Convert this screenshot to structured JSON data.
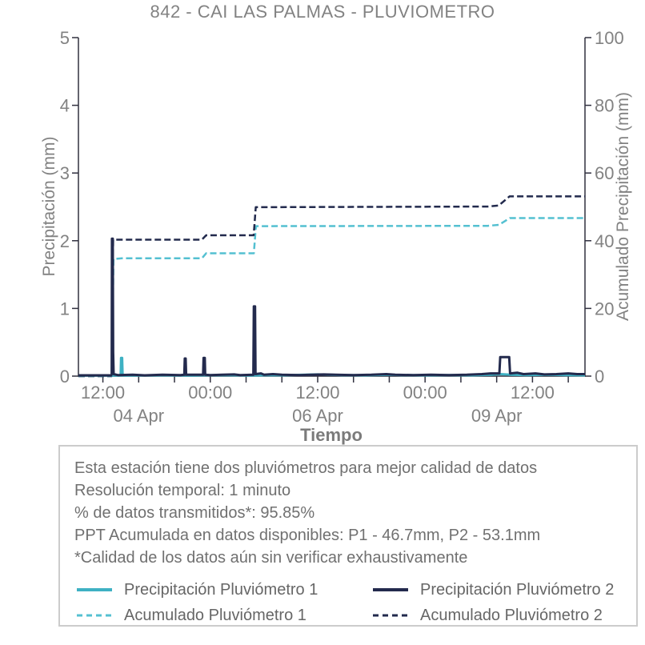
{
  "chart_data": {
    "type": "line",
    "title": "842 - CAI LAS PALMAS - PLUVIOMETRO",
    "xlabel": "Tiempo",
    "ylabel": "Precipitación (mm)",
    "y2label": "Acumulado Precipitación (mm)",
    "grid": false,
    "x_axis": {
      "unit": "hours from 03 Apr 12:00",
      "domain_hours": [
        -8.2,
        161.6
      ],
      "ticks": [
        {
          "h": 0,
          "label": "12:00"
        },
        {
          "h": 12,
          "label": ""
        },
        {
          "h": 24,
          "label": ""
        },
        {
          "h": 36,
          "label": "00:00"
        },
        {
          "h": 48,
          "label": ""
        },
        {
          "h": 60,
          "label": ""
        },
        {
          "h": 72,
          "label": "12:00"
        },
        {
          "h": 84,
          "label": ""
        },
        {
          "h": 96,
          "label": ""
        },
        {
          "h": 108,
          "label": "00:00"
        },
        {
          "h": 120,
          "label": ""
        },
        {
          "h": 132,
          "label": ""
        },
        {
          "h": 144,
          "label": "12:00"
        },
        {
          "h": 156,
          "label": ""
        }
      ],
      "date_ticks": [
        {
          "h": 12,
          "label": "04 Apr"
        },
        {
          "h": 72,
          "label": "06 Apr"
        },
        {
          "h": 132,
          "label": "09 Apr"
        }
      ]
    },
    "y_left": {
      "min": 0,
      "max": 5,
      "ticks": [
        0,
        1,
        2,
        3,
        4,
        5
      ]
    },
    "y_right": {
      "min": 0,
      "max": 100,
      "ticks": [
        0,
        20,
        40,
        60,
        80,
        100
      ]
    },
    "series": [
      {
        "name": "Acumulado Pluviómetro 1",
        "axis": "right",
        "style": "dashed",
        "color": "#54c0d1",
        "width": 2.5,
        "points": [
          [
            -8.2,
            0
          ],
          [
            3.05,
            0
          ],
          [
            3.55,
            34.6
          ],
          [
            6.4,
            34.8
          ],
          [
            33.2,
            34.8
          ],
          [
            34.6,
            36.3
          ],
          [
            50.6,
            36.3
          ],
          [
            51.3,
            44.3
          ],
          [
            129,
            44.4
          ],
          [
            132.8,
            44.7
          ],
          [
            136.4,
            46.7
          ],
          [
            161.6,
            46.7
          ]
        ]
      },
      {
        "name": "Acumulado Pluviómetro 2",
        "axis": "right",
        "style": "dashed",
        "color": "#222a4d",
        "width": 2.5,
        "points": [
          [
            -8.2,
            0
          ],
          [
            2.95,
            0
          ],
          [
            3.45,
            40.3
          ],
          [
            33.2,
            40.3
          ],
          [
            34.6,
            41.6
          ],
          [
            50.55,
            41.6
          ],
          [
            51.25,
            49.9
          ],
          [
            129,
            50.1
          ],
          [
            132.7,
            50.4
          ],
          [
            136.3,
            53.1
          ],
          [
            161.6,
            53.1
          ]
        ]
      },
      {
        "name": "Precipitación Pluviómetro 1",
        "axis": "left",
        "style": "solid",
        "color": "#3eb1c3",
        "width": 3,
        "points": [
          [
            -8.2,
            0.01
          ],
          [
            5.95,
            0.01
          ],
          [
            6.1,
            0.27
          ],
          [
            6.45,
            0.27
          ],
          [
            6.6,
            0.01
          ],
          [
            20,
            0.012
          ],
          [
            30,
            0.01
          ],
          [
            40,
            0.015
          ],
          [
            50,
            0.01
          ],
          [
            56,
            0.015
          ],
          [
            60,
            0.012
          ],
          [
            68,
            0.02
          ],
          [
            72,
            0.025
          ],
          [
            76,
            0.02
          ],
          [
            80,
            0.015
          ],
          [
            88,
            0.012
          ],
          [
            96,
            0.02
          ],
          [
            100,
            0.015
          ],
          [
            108,
            0.012
          ],
          [
            116,
            0.015
          ],
          [
            124,
            0.012
          ],
          [
            130,
            0.02
          ],
          [
            133,
            0.03
          ],
          [
            135,
            0.025
          ],
          [
            137,
            0.02
          ],
          [
            142,
            0.015
          ],
          [
            150,
            0.02
          ],
          [
            155,
            0.015
          ],
          [
            161.6,
            0.012
          ]
        ]
      },
      {
        "name": "Precipitación Pluviómetro 2",
        "axis": "left",
        "style": "solid",
        "color": "#232a4d",
        "width": 3,
        "points": [
          [
            -8.2,
            0.012
          ],
          [
            2.8,
            0.012
          ],
          [
            2.95,
            0.03
          ],
          [
            3.05,
            2.03
          ],
          [
            3.3,
            2.03
          ],
          [
            3.45,
            0.35
          ],
          [
            3.6,
            0.03
          ],
          [
            5,
            0.015
          ],
          [
            10,
            0.02
          ],
          [
            14,
            0.012
          ],
          [
            20,
            0.02
          ],
          [
            26,
            0.015
          ],
          [
            27.3,
            0.02
          ],
          [
            27.45,
            0.26
          ],
          [
            27.75,
            0.26
          ],
          [
            27.9,
            0.02
          ],
          [
            33.6,
            0.02
          ],
          [
            33.75,
            0.27
          ],
          [
            34.15,
            0.27
          ],
          [
            34.3,
            0.02
          ],
          [
            36,
            0.015
          ],
          [
            40,
            0.02
          ],
          [
            44,
            0.025
          ],
          [
            46,
            0.015
          ],
          [
            50.45,
            0.02
          ],
          [
            50.6,
            1.03
          ],
          [
            51.0,
            1.03
          ],
          [
            51.15,
            0.03
          ],
          [
            53,
            0.04
          ],
          [
            54,
            0.02
          ],
          [
            57,
            0.03
          ],
          [
            60,
            0.02
          ],
          [
            66,
            0.015
          ],
          [
            70,
            0.02
          ],
          [
            74,
            0.025
          ],
          [
            78,
            0.02
          ],
          [
            84,
            0.015
          ],
          [
            90,
            0.02
          ],
          [
            95,
            0.03
          ],
          [
            98,
            0.02
          ],
          [
            104,
            0.015
          ],
          [
            110,
            0.02
          ],
          [
            116,
            0.015
          ],
          [
            122,
            0.02
          ],
          [
            127,
            0.03
          ],
          [
            130,
            0.04
          ],
          [
            132.9,
            0.04
          ],
          [
            133.2,
            0.28
          ],
          [
            136.2,
            0.28
          ],
          [
            136.5,
            0.04
          ],
          [
            139,
            0.05
          ],
          [
            141,
            0.03
          ],
          [
            145,
            0.04
          ],
          [
            148,
            0.025
          ],
          [
            152,
            0.03
          ],
          [
            156,
            0.04
          ],
          [
            159,
            0.03
          ],
          [
            161.6,
            0.03
          ]
        ]
      }
    ],
    "colors": {
      "teal_solid": "#3eb1c3",
      "teal_dashed": "#54c0d1",
      "navy": "#232a4d",
      "spine": "#30303f",
      "tick_text": "#828282"
    }
  },
  "info": {
    "lines": [
      "Esta estación tiene dos pluviómetros para mejor calidad de datos",
      "Resolución temporal: 1 minuto",
      "% de datos transmitidos*: 95.85%",
      "PPT Acumulada en datos disponibles: P1 - 46.7mm, P2 - 53.1mm",
      "*Calidad de los datos aún sin verificar exhaustivamente"
    ]
  },
  "legend": {
    "items": [
      {
        "label": "Precipitación Pluviómetro 1",
        "color": "#3eb1c3",
        "style": "solid"
      },
      {
        "label": "Precipitación Pluviómetro 2",
        "color": "#232a4d",
        "style": "solid"
      },
      {
        "label": "Acumulado Pluviómetro 1",
        "color": "#54c0d1",
        "style": "dashed"
      },
      {
        "label": "Acumulado Pluviómetro 2",
        "color": "#222a4d",
        "style": "dashed"
      }
    ]
  }
}
